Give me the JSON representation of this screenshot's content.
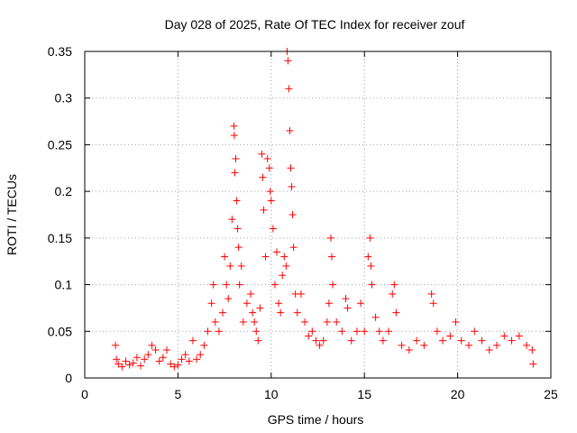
{
  "chart_data": {
    "type": "scatter",
    "title": "Day 028 of 2025, Rate Of TEC Index for receiver zouf",
    "xlabel": "GPS time / hours",
    "ylabel": "ROTI / TECUs",
    "xlim": [
      0,
      25
    ],
    "ylim": [
      0,
      0.35
    ],
    "xticks": [
      "0",
      "5",
      "10",
      "15",
      "20",
      "25"
    ],
    "yticks": [
      "0",
      "0.05",
      "0.1",
      "0.15",
      "0.2",
      "0.25",
      "0.3",
      "0.35"
    ],
    "grid": true,
    "marker": "+",
    "color": "#ff0000",
    "series": [
      {
        "points": [
          [
            1.65,
            0.035
          ],
          [
            1.7,
            0.02
          ],
          [
            1.8,
            0.015
          ],
          [
            2.0,
            0.012
          ],
          [
            2.2,
            0.018
          ],
          [
            2.4,
            0.014
          ],
          [
            2.6,
            0.016
          ],
          [
            2.8,
            0.022
          ],
          [
            3.0,
            0.013
          ],
          [
            3.2,
            0.02
          ],
          [
            3.4,
            0.025
          ],
          [
            3.6,
            0.035
          ],
          [
            3.8,
            0.03
          ],
          [
            4.0,
            0.018
          ],
          [
            4.2,
            0.022
          ],
          [
            4.4,
            0.03
          ],
          [
            4.6,
            0.015
          ],
          [
            4.8,
            0.012
          ],
          [
            5.0,
            0.014
          ],
          [
            5.2,
            0.02
          ],
          [
            5.4,
            0.025
          ],
          [
            5.6,
            0.018
          ],
          [
            5.8,
            0.04
          ],
          [
            6.0,
            0.02
          ],
          [
            6.2,
            0.025
          ],
          [
            6.4,
            0.035
          ],
          [
            6.6,
            0.05
          ],
          [
            6.8,
            0.08
          ],
          [
            6.9,
            0.1
          ],
          [
            7.0,
            0.06
          ],
          [
            7.2,
            0.05
          ],
          [
            7.4,
            0.07
          ],
          [
            7.5,
            0.13
          ],
          [
            7.6,
            0.1
          ],
          [
            7.7,
            0.085
          ],
          [
            7.8,
            0.12
          ],
          [
            7.9,
            0.17
          ],
          [
            8.0,
            0.27
          ],
          [
            8.02,
            0.26
          ],
          [
            8.05,
            0.22
          ],
          [
            8.1,
            0.235
          ],
          [
            8.15,
            0.19
          ],
          [
            8.2,
            0.16
          ],
          [
            8.25,
            0.14
          ],
          [
            8.3,
            0.1
          ],
          [
            8.4,
            0.12
          ],
          [
            8.5,
            0.06
          ],
          [
            8.7,
            0.08
          ],
          [
            8.9,
            0.09
          ],
          [
            9.0,
            0.07
          ],
          [
            9.1,
            0.06
          ],
          [
            9.2,
            0.05
          ],
          [
            9.3,
            0.04
          ],
          [
            9.4,
            0.075
          ],
          [
            9.5,
            0.24
          ],
          [
            9.55,
            0.215
          ],
          [
            9.6,
            0.18
          ],
          [
            9.7,
            0.13
          ],
          [
            9.8,
            0.235
          ],
          [
            9.9,
            0.225
          ],
          [
            9.95,
            0.2
          ],
          [
            10.0,
            0.19
          ],
          [
            10.1,
            0.16
          ],
          [
            10.2,
            0.1
          ],
          [
            10.3,
            0.135
          ],
          [
            10.4,
            0.08
          ],
          [
            10.5,
            0.07
          ],
          [
            10.6,
            0.11
          ],
          [
            10.7,
            0.13
          ],
          [
            10.8,
            0.12
          ],
          [
            10.85,
            0.35
          ],
          [
            10.9,
            0.34
          ],
          [
            10.95,
            0.31
          ],
          [
            11.0,
            0.265
          ],
          [
            11.05,
            0.225
          ],
          [
            11.1,
            0.205
          ],
          [
            11.15,
            0.175
          ],
          [
            11.2,
            0.14
          ],
          [
            11.3,
            0.09
          ],
          [
            11.4,
            0.07
          ],
          [
            11.6,
            0.09
          ],
          [
            11.8,
            0.06
          ],
          [
            12.0,
            0.045
          ],
          [
            12.2,
            0.05
          ],
          [
            12.4,
            0.04
          ],
          [
            12.6,
            0.035
          ],
          [
            12.8,
            0.04
          ],
          [
            13.0,
            0.06
          ],
          [
            13.1,
            0.08
          ],
          [
            13.2,
            0.15
          ],
          [
            13.25,
            0.13
          ],
          [
            13.3,
            0.1
          ],
          [
            13.5,
            0.06
          ],
          [
            13.8,
            0.05
          ],
          [
            14.0,
            0.085
          ],
          [
            14.1,
            0.075
          ],
          [
            14.3,
            0.04
          ],
          [
            14.6,
            0.05
          ],
          [
            14.8,
            0.08
          ],
          [
            15.0,
            0.05
          ],
          [
            15.2,
            0.13
          ],
          [
            15.3,
            0.15
          ],
          [
            15.35,
            0.12
          ],
          [
            15.4,
            0.1
          ],
          [
            15.6,
            0.065
          ],
          [
            15.8,
            0.05
          ],
          [
            16.0,
            0.04
          ],
          [
            16.3,
            0.05
          ],
          [
            16.5,
            0.09
          ],
          [
            16.6,
            0.1
          ],
          [
            16.7,
            0.07
          ],
          [
            17.0,
            0.035
          ],
          [
            17.4,
            0.03
          ],
          [
            17.8,
            0.04
          ],
          [
            18.2,
            0.035
          ],
          [
            18.6,
            0.09
          ],
          [
            18.7,
            0.08
          ],
          [
            18.9,
            0.05
          ],
          [
            19.2,
            0.04
          ],
          [
            19.6,
            0.045
          ],
          [
            19.9,
            0.06
          ],
          [
            20.2,
            0.04
          ],
          [
            20.6,
            0.035
          ],
          [
            20.9,
            0.05
          ],
          [
            21.3,
            0.04
          ],
          [
            21.7,
            0.03
          ],
          [
            22.1,
            0.035
          ],
          [
            22.5,
            0.045
          ],
          [
            22.9,
            0.04
          ],
          [
            23.3,
            0.045
          ],
          [
            23.7,
            0.035
          ],
          [
            24.0,
            0.03
          ],
          [
            24.05,
            0.015
          ]
        ]
      }
    ]
  }
}
